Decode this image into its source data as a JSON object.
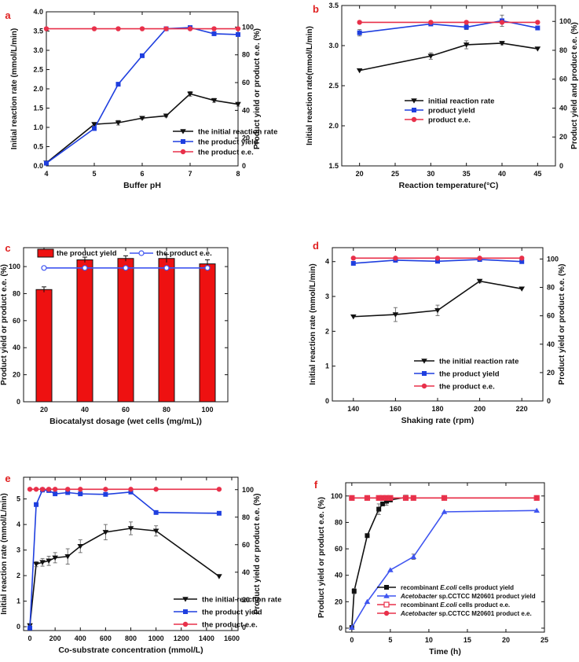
{
  "chart_data": [
    {
      "panel": "a",
      "type": "line",
      "xlabel": "Buffer pH",
      "ylabel_left": "Initial reaction rate (mmol/L/min)",
      "ylabel_right": "Product yield or product e.e. (%)",
      "x_ticks": [
        4,
        5,
        6,
        7,
        8
      ],
      "x_range": [
        4,
        8
      ],
      "y_left_ticks": [
        0,
        0.5,
        1.0,
        1.5,
        2.0,
        2.5,
        3.0,
        3.5,
        4.0
      ],
      "y_left_range": [
        0,
        4
      ],
      "y_right_ticks": [
        0,
        20,
        40,
        60,
        80,
        100
      ],
      "y_right_range": [
        0,
        111
      ],
      "legend": [
        "the initial reaction rate",
        "the product yield",
        "the product e.e."
      ],
      "series": [
        {
          "name": "the initial reaction rate",
          "axis": "left",
          "color": "#111111",
          "marker": "tri-down",
          "x": [
            4,
            5,
            5.5,
            6,
            6.5,
            7,
            7.5,
            8
          ],
          "values": [
            0.08,
            1.08,
            1.12,
            1.24,
            1.3,
            1.87,
            1.7,
            1.6
          ],
          "errors": [
            0,
            0.03,
            0.06,
            0.03,
            0.03,
            0.06,
            0.05,
            0.05
          ]
        },
        {
          "name": "the product yield",
          "axis": "left",
          "color": "#1f3fdf",
          "marker": "square",
          "x": [
            4,
            5,
            5.5,
            6,
            6.5,
            7,
            7.5,
            8
          ],
          "values": [
            0.07,
            0.97,
            2.12,
            2.86,
            3.56,
            3.59,
            3.43,
            3.41
          ],
          "errors": [
            0,
            0,
            0,
            0,
            0,
            0,
            0,
            0
          ]
        },
        {
          "name": "the product e.e.",
          "axis": "left",
          "color": "#e8304a",
          "marker": "circle",
          "x": [
            4,
            5,
            5.5,
            6,
            6.5,
            7,
            7.5,
            8
          ],
          "values": [
            3.56,
            3.56,
            3.56,
            3.56,
            3.56,
            3.56,
            3.56,
            3.56
          ],
          "errors": [
            0,
            0,
            0,
            0,
            0,
            0,
            0,
            0
          ]
        }
      ]
    },
    {
      "panel": "b",
      "type": "line",
      "xlabel": "Reaction temperature(°C)",
      "ylabel_left": "Initial reaction rate(mmol/L/min)",
      "ylabel_right": "Product yield and product e.e. (%)",
      "x_ticks": [
        20,
        25,
        30,
        35,
        40,
        45
      ],
      "x_range": [
        17.5,
        47.5
      ],
      "y_left_ticks": [
        1.5,
        2.0,
        2.5,
        3.0,
        3.5
      ],
      "y_left_range": [
        1.5,
        3.5
      ],
      "y_right_ticks": [
        0,
        20,
        40,
        60,
        80,
        100
      ],
      "y_right_range": [
        0,
        111
      ],
      "legend": [
        "initial reaction rate",
        "product yield",
        "product e.e."
      ],
      "series": [
        {
          "name": "initial reaction rate",
          "axis": "left",
          "color": "#111111",
          "marker": "tri-down",
          "x": [
            20,
            30,
            35,
            40,
            45
          ],
          "values": [
            2.69,
            2.87,
            3.01,
            3.03,
            2.96
          ],
          "errors": [
            0,
            0.04,
            0.05,
            0.02,
            0
          ]
        },
        {
          "name": "product yield",
          "axis": "left",
          "color": "#1f3fdf",
          "marker": "square",
          "x": [
            20,
            30,
            35,
            40,
            45
          ],
          "values": [
            3.16,
            3.27,
            3.23,
            3.31,
            3.22
          ],
          "errors": [
            0.04,
            0,
            0.03,
            0.07,
            0
          ]
        },
        {
          "name": "product e.e.",
          "axis": "left",
          "color": "#e8304a",
          "marker": "circle",
          "x": [
            20,
            30,
            35,
            40,
            45
          ],
          "values": [
            3.29,
            3.29,
            3.29,
            3.29,
            3.29
          ],
          "errors": [
            0,
            0,
            0,
            0,
            0
          ]
        }
      ]
    },
    {
      "panel": "c",
      "type": "bar",
      "xlabel": "Biocatalyst dosage (wet cells (mg/mL))",
      "ylabel_left": "Product yield or product e.e. (%)",
      "x_ticks": [
        20,
        40,
        60,
        80,
        100
      ],
      "x_range": [
        10,
        110
      ],
      "y_left_ticks": [
        0,
        20,
        40,
        60,
        80,
        100
      ],
      "y_left_range": [
        0,
        114
      ],
      "legend": [
        "the product yield",
        "the product e.e."
      ],
      "series": [
        {
          "name": "the product yield",
          "kind": "bar",
          "color": "#ee1111",
          "x": [
            20,
            40,
            60,
            80,
            100
          ],
          "values": [
            83,
            105,
            106,
            106,
            102
          ],
          "errors": [
            2,
            2,
            2,
            3,
            3
          ]
        },
        {
          "name": "the product e.e.",
          "kind": "line",
          "color": "#3f55f0",
          "marker": "open-circle",
          "x": [
            20,
            40,
            60,
            80,
            100
          ],
          "values": [
            99,
            99,
            99,
            99,
            99
          ],
          "errors": [
            0,
            0,
            0,
            0,
            0
          ]
        }
      ]
    },
    {
      "panel": "d",
      "type": "line",
      "xlabel": "Shaking rate (rpm)",
      "ylabel_left": "Initial reaction rate (mmol/L/min)",
      "ylabel_right": "Product yield or product e.e. (%)",
      "x_ticks": [
        140,
        160,
        180,
        200,
        220
      ],
      "x_range": [
        130,
        230
      ],
      "y_left_ticks": [
        0,
        1,
        2,
        3,
        4
      ],
      "y_left_range": [
        0,
        4.4
      ],
      "y_right_ticks": [
        0,
        20,
        40,
        60,
        80,
        100
      ],
      "y_right_range": [
        0,
        108
      ],
      "legend": [
        "the initial reaction rate",
        "the product yield",
        "the product e.e."
      ],
      "series": [
        {
          "name": "the initial reaction rate",
          "axis": "left",
          "color": "#111111",
          "marker": "tri-down",
          "x": [
            140,
            160,
            180,
            200,
            220
          ],
          "values": [
            2.42,
            2.48,
            2.6,
            3.44,
            3.22
          ],
          "errors": [
            0,
            0.2,
            0.15,
            0.05,
            0
          ]
        },
        {
          "name": "the product yield",
          "axis": "left",
          "color": "#1f3fdf",
          "marker": "square",
          "x": [
            140,
            160,
            180,
            200,
            220
          ],
          "values": [
            3.95,
            4.04,
            4.01,
            4.06,
            4.0
          ],
          "errors": [
            0,
            0.03,
            0.05,
            0.03,
            0
          ]
        },
        {
          "name": "the product e.e.",
          "axis": "left",
          "color": "#e8304a",
          "marker": "circle",
          "x": [
            140,
            160,
            180,
            200,
            220
          ],
          "values": [
            4.1,
            4.1,
            4.1,
            4.1,
            4.1
          ],
          "errors": [
            0,
            0,
            0,
            0,
            0
          ]
        }
      ]
    },
    {
      "panel": "e",
      "type": "line",
      "xlabel": "Co-substrate concentration (mmol/L)",
      "ylabel_left": "Initial reaction rate (mmol/L/min)",
      "ylabel_right": "Product yield or product e.e. (%)",
      "x_ticks": [
        0,
        200,
        400,
        600,
        800,
        1000,
        1200,
        1400,
        1600
      ],
      "x_range": [
        -50,
        1650
      ],
      "y_left_ticks": [
        0,
        1,
        2,
        3,
        4,
        5
      ],
      "y_left_range": [
        -0.15,
        5.85
      ],
      "y_right_ticks": [
        0,
        20,
        40,
        60,
        80,
        100
      ],
      "y_right_range": [
        -2.4,
        109
      ],
      "legend": [
        "the initial reaction rate",
        "the product yield",
        "the product e.e."
      ],
      "series": [
        {
          "name": "the initial reaction rate",
          "axis": "left",
          "color": "#111111",
          "marker": "tri-down",
          "x": [
            0,
            50,
            100,
            150,
            200,
            300,
            400,
            600,
            800,
            1000,
            1500
          ],
          "values": [
            0.05,
            2.45,
            2.52,
            2.58,
            2.7,
            2.75,
            3.15,
            3.7,
            3.85,
            3.75,
            1.97
          ],
          "errors": [
            0,
            0.1,
            0.15,
            0.18,
            0.2,
            0.3,
            0.25,
            0.3,
            0.25,
            0.2,
            0
          ]
        },
        {
          "name": "the product yield",
          "axis": "left",
          "color": "#1f3fdf",
          "marker": "square",
          "x": [
            0,
            50,
            100,
            150,
            200,
            300,
            400,
            600,
            800,
            1000,
            1500
          ],
          "values": [
            -0.05,
            4.78,
            5.35,
            5.33,
            5.2,
            5.25,
            5.2,
            5.18,
            5.27,
            4.47,
            4.44
          ],
          "errors": [
            0,
            0,
            0,
            0.05,
            0.05,
            0.05,
            0.05,
            0.05,
            0,
            0,
            0
          ]
        },
        {
          "name": "the product e.e.",
          "axis": "left",
          "color": "#e8304a",
          "marker": "circle",
          "x": [
            0,
            50,
            100,
            150,
            200,
            300,
            400,
            600,
            800,
            1000,
            1500
          ],
          "values": [
            5.38,
            5.38,
            5.38,
            5.38,
            5.38,
            5.38,
            5.38,
            5.38,
            5.38,
            5.38,
            5.38
          ],
          "errors": [
            0,
            0,
            0,
            0,
            0,
            0,
            0,
            0,
            0,
            0,
            0
          ]
        }
      ]
    },
    {
      "panel": "f",
      "type": "line",
      "xlabel": "Time (h)",
      "ylabel_left": "Product yield or product e.e. (%)",
      "x_ticks": [
        0,
        5,
        10,
        15,
        20,
        25
      ],
      "x_range": [
        -0.8,
        25
      ],
      "y_left_ticks": [
        0,
        20,
        40,
        60,
        80,
        100
      ],
      "y_left_range": [
        -3,
        110
      ],
      "legend": [
        "recombinant E.coli cells product yield",
        "Acetobacter sp.CCTCC M20601 product yield",
        "recombinant E.coli cells product e.e.",
        "Acetobacter sp.CCTCC M20601 product e.e."
      ],
      "series": [
        {
          "name": "recombinant E.coli cells product yield",
          "color": "#111111",
          "marker": "square",
          "x": [
            0,
            0.3,
            2,
            3.5,
            4,
            4.5,
            5,
            7
          ],
          "values": [
            0.5,
            28,
            70,
            90,
            94,
            96,
            97,
            99
          ],
          "errors": [
            0,
            2,
            0,
            4,
            0,
            3,
            0,
            0
          ]
        },
        {
          "name": "Acetobacter sp.CCTCC M20601 product yield",
          "color": "#3f55f0",
          "marker": "tri-up",
          "x": [
            0,
            2,
            5,
            8,
            12,
            24
          ],
          "values": [
            0.5,
            20,
            44,
            54,
            88,
            89
          ],
          "errors": [
            0,
            0,
            0,
            2,
            0,
            0
          ]
        },
        {
          "name": "recombinant E.coli cells product e.e.",
          "color": "#e8304a",
          "marker": "open-square",
          "x": [
            0,
            2,
            3.5,
            4,
            4.5,
            5,
            7,
            8,
            12,
            24
          ],
          "values": [
            98.5,
            98.5,
            98.5,
            98.5,
            98.5,
            98.5,
            98.5,
            98.5,
            98.5,
            98.5
          ],
          "errors": [
            0,
            0,
            0,
            0,
            0,
            0,
            0,
            0,
            0,
            0
          ]
        },
        {
          "name": "Acetobacter sp.CCTCC M20601 product e.e.",
          "color": "#e8304a",
          "marker": "circle",
          "x": [
            0,
            2,
            3.5,
            4,
            4.5,
            5,
            7,
            8,
            12,
            24
          ],
          "values": [
            98.5,
            98.5,
            98.5,
            98.5,
            98.5,
            98.5,
            98.5,
            98.5,
            98.5,
            98.5
          ],
          "errors": [
            0,
            0,
            0,
            0,
            0,
            0,
            0,
            0,
            0,
            0
          ]
        }
      ]
    }
  ]
}
